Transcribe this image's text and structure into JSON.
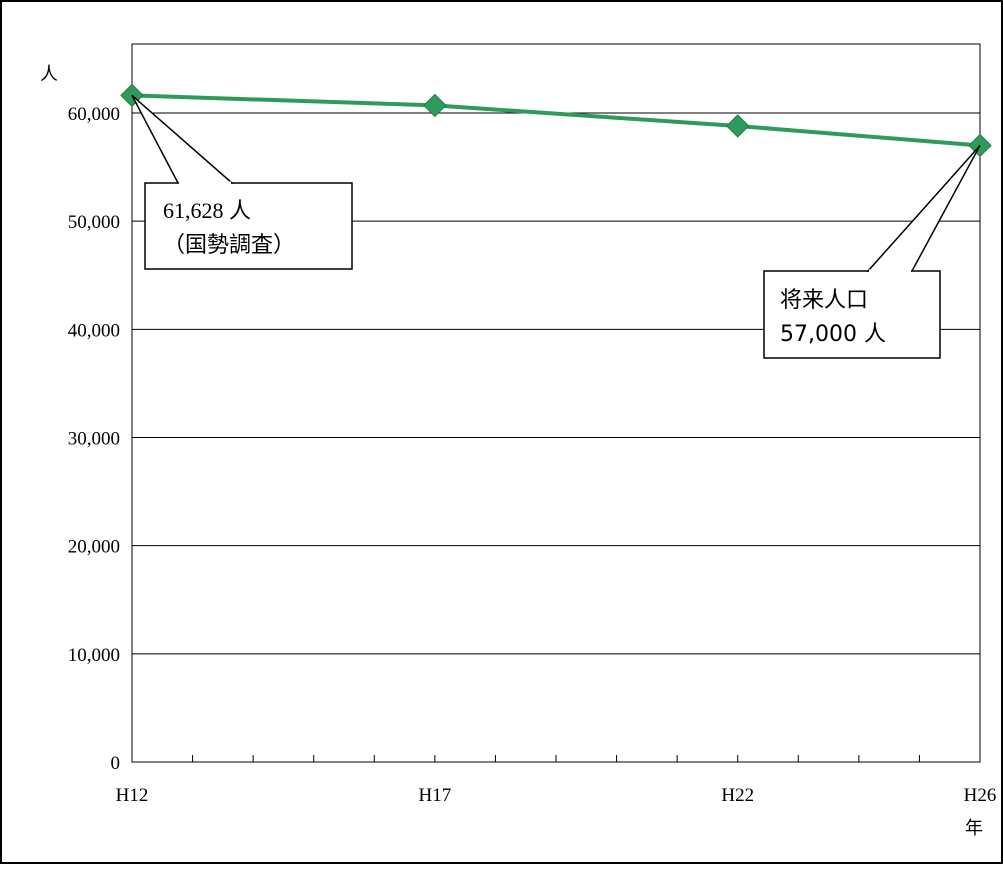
{
  "chart_data": {
    "type": "line",
    "title": "",
    "xlabel": "年",
    "ylabel": "人",
    "categories": [
      "H12",
      "H17",
      "H22",
      "H26"
    ],
    "x_years": [
      12,
      17,
      22,
      26
    ],
    "x_range": [
      12,
      26
    ],
    "x_minor_tick_step": 1,
    "y_ticks": [
      "0",
      "10,000",
      "20,000",
      "30,000",
      "40,000",
      "50,000",
      "60,000"
    ],
    "y_tick_values": [
      0,
      10000,
      20000,
      30000,
      40000,
      50000,
      60000
    ],
    "ylim": [
      0,
      65000
    ],
    "grid": true,
    "series": [
      {
        "x": [
          12,
          17,
          22,
          26
        ],
        "values": [
          61628,
          60700,
          58800,
          57000
        ],
        "color": "#2e9b5e",
        "marker": "diamond"
      }
    ],
    "annotations": [
      {
        "point": 0,
        "line1": "61,628 人",
        "line2": "（国勢調査）"
      },
      {
        "point": 3,
        "line1": "将来人口",
        "line2": "57,000 人"
      }
    ]
  }
}
